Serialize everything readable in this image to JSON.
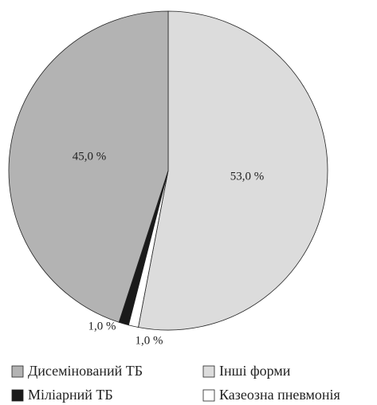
{
  "chart_data": {
    "type": "pie",
    "categories": [
      "Інші форми",
      "Казеозна пневмонія",
      "Міліарний ТБ",
      "Дисемінований ТБ"
    ],
    "values": [
      53,
      1,
      1,
      45
    ],
    "value_labels": [
      "53,0 %",
      "1,0 %",
      "1,0 %",
      "45,0 %"
    ],
    "colors": [
      "#dcdcdc",
      "#ffffff",
      "#1a1a1a",
      "#b3b3b3"
    ]
  }
}
